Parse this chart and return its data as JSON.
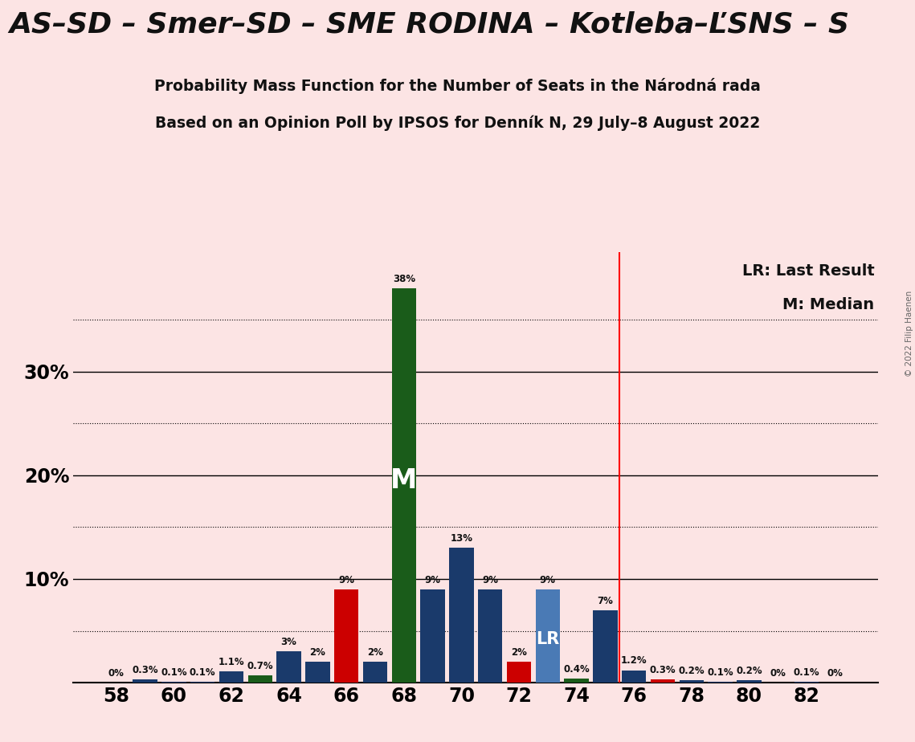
{
  "title_top": "AS–SD – Smer–SD – SME RODINA – Kotleba–ĽSNS – S",
  "subtitle1": "Probability Mass Function for the Number of Seats in the Národná rada",
  "subtitle2": "Based on an Opinion Poll by IPSOS for Denník N, 29 July–8 August 2022",
  "background_color": "#fce4e4",
  "bar_data": [
    {
      "seat": 58,
      "value": 0.0,
      "color": "#1a3a6b"
    },
    {
      "seat": 59,
      "value": 0.003,
      "color": "#1a3a6b"
    },
    {
      "seat": 60,
      "value": 0.001,
      "color": "#1a3a6b"
    },
    {
      "seat": 61,
      "value": 0.001,
      "color": "#1a3a6b"
    },
    {
      "seat": 62,
      "value": 0.011,
      "color": "#1a3a6b"
    },
    {
      "seat": 63,
      "value": 0.007,
      "color": "#1a5c1a"
    },
    {
      "seat": 64,
      "value": 0.03,
      "color": "#1a3a6b"
    },
    {
      "seat": 65,
      "value": 0.02,
      "color": "#1a3a6b"
    },
    {
      "seat": 66,
      "value": 0.09,
      "color": "#cc0000"
    },
    {
      "seat": 67,
      "value": 0.02,
      "color": "#1a3a6b"
    },
    {
      "seat": 68,
      "value": 0.38,
      "color": "#1a5c1a"
    },
    {
      "seat": 69,
      "value": 0.09,
      "color": "#1a3a6b"
    },
    {
      "seat": 70,
      "value": 0.13,
      "color": "#1a3a6b"
    },
    {
      "seat": 71,
      "value": 0.09,
      "color": "#1a3a6b"
    },
    {
      "seat": 72,
      "value": 0.02,
      "color": "#cc0000"
    },
    {
      "seat": 73,
      "value": 0.09,
      "color": "#4a7ab5"
    },
    {
      "seat": 74,
      "value": 0.004,
      "color": "#1a5c1a"
    },
    {
      "seat": 75,
      "value": 0.07,
      "color": "#1a3a6b"
    },
    {
      "seat": 76,
      "value": 0.012,
      "color": "#1a3a6b"
    },
    {
      "seat": 77,
      "value": 0.003,
      "color": "#cc0000"
    },
    {
      "seat": 78,
      "value": 0.002,
      "color": "#1a3a6b"
    },
    {
      "seat": 79,
      "value": 0.001,
      "color": "#1a3a6b"
    },
    {
      "seat": 80,
      "value": 0.002,
      "color": "#1a3a6b"
    },
    {
      "seat": 81,
      "value": 0.0,
      "color": "#1a3a6b"
    },
    {
      "seat": 82,
      "value": 0.001,
      "color": "#1a3a6b"
    },
    {
      "seat": 83,
      "value": 0.0,
      "color": "#1a3a6b"
    }
  ],
  "labels": {
    "58": "0%",
    "59": "0.3%",
    "60": "0.1%",
    "61": "0.1%",
    "62": "1.1%",
    "63": "0.7%",
    "64": "3%",
    "65": "2%",
    "66": "9%",
    "67": "2%",
    "68": "38%",
    "69": "9%",
    "70": "13%",
    "71": "9%",
    "72": "2%",
    "73": "9%",
    "74": "0.4%",
    "75": "7%",
    "76": "1.2%",
    "77": "0.3%",
    "78": "0.2%",
    "79": "0.1%",
    "80": "0.2%",
    "81": "0%",
    "82": "0.1%",
    "83": "0%"
  },
  "median_seat": 68,
  "lr_seat": 73,
  "vline_x": 75.5,
  "xticks": [
    58,
    60,
    62,
    64,
    66,
    68,
    70,
    72,
    74,
    76,
    78,
    80,
    82
  ],
  "copyright": "© 2022 Filip Haenen",
  "legend_lr": "LR: Last Result",
  "legend_m": "M: Median",
  "dotted_yticks": [
    0.05,
    0.15,
    0.25,
    0.35
  ],
  "solid_yticks": [
    0.1,
    0.2,
    0.3
  ],
  "ylabel_texts": [
    "10%",
    "20%",
    "30%"
  ],
  "ylim": [
    0,
    0.415
  ],
  "xlim": [
    56.5,
    84.5
  ]
}
